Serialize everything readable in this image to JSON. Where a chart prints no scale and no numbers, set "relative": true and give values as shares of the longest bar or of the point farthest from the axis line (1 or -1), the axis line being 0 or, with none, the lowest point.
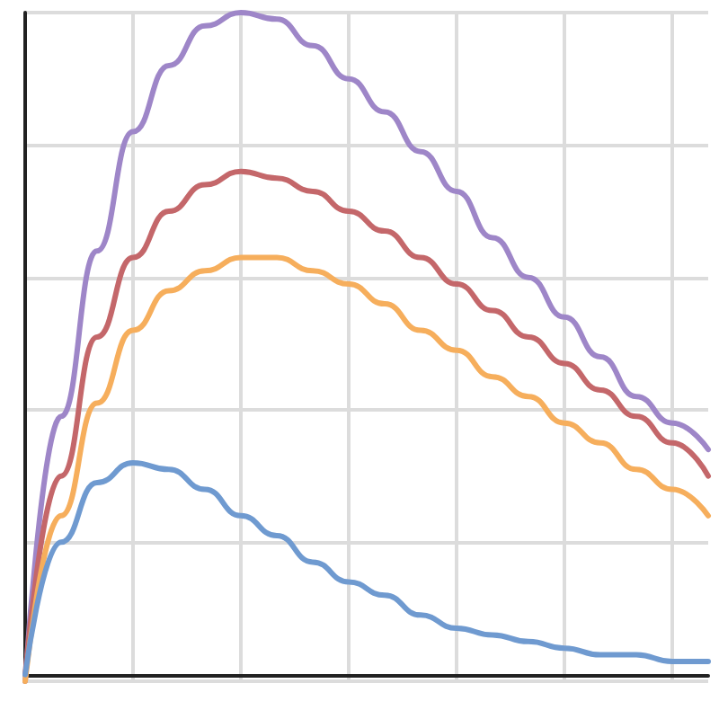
{
  "chart_data": {
    "type": "line",
    "relative": true,
    "grid": true,
    "marker": "none",
    "line_style": "solid",
    "categories": [
      null,
      null,
      null,
      null,
      null,
      null,
      null,
      null,
      null,
      null,
      null,
      null,
      null,
      null,
      null,
      null,
      null,
      null,
      null,
      null
    ],
    "series": [
      {
        "color": "#9e86c8",
        "values": [
          -0.01,
          0.39,
          0.64,
          0.82,
          0.92,
          0.98,
          1.0,
          0.99,
          0.95,
          0.9,
          0.85,
          0.79,
          0.73,
          0.66,
          0.6,
          0.54,
          0.48,
          0.42,
          0.38,
          0.34
        ]
      },
      {
        "color": "#c4676a",
        "values": [
          0,
          0.3,
          0.51,
          0.63,
          0.7,
          0.74,
          0.76,
          0.75,
          0.73,
          0.7,
          0.67,
          0.63,
          0.59,
          0.55,
          0.51,
          0.47,
          0.43,
          0.39,
          0.35,
          0.3
        ]
      },
      {
        "color": "#f6ae5c",
        "values": [
          -0.01,
          0.24,
          0.41,
          0.52,
          0.58,
          0.61,
          0.63,
          0.63,
          0.61,
          0.59,
          0.56,
          0.52,
          0.49,
          0.45,
          0.42,
          0.38,
          0.35,
          0.31,
          0.28,
          0.24
        ]
      },
      {
        "color": "#6f9ad0",
        "values": [
          0,
          0.2,
          0.29,
          0.32,
          0.31,
          0.28,
          0.24,
          0.21,
          0.17,
          0.14,
          0.12,
          0.09,
          0.07,
          0.06,
          0.05,
          0.04,
          0.03,
          0.03,
          0.02,
          0.02
        ]
      }
    ]
  }
}
